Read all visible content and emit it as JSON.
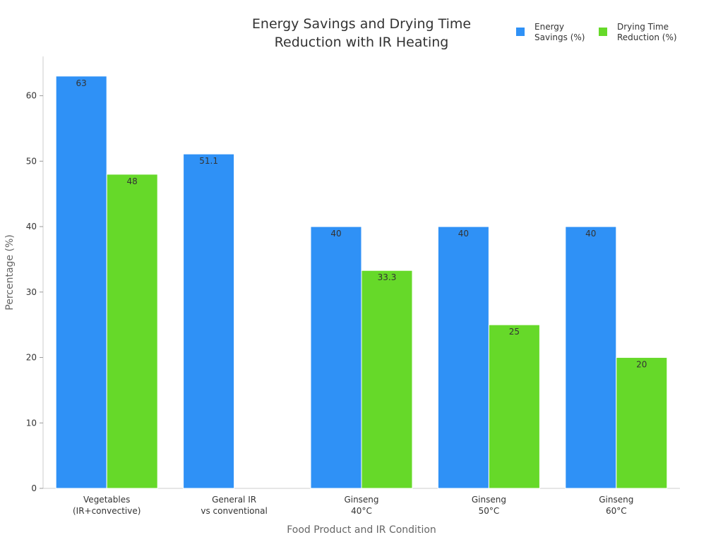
{
  "chart_data": {
    "type": "bar",
    "title": [
      "Energy Savings and Drying Time",
      "Reduction with IR Heating"
    ],
    "xlabel": "Food Product and IR Condition",
    "ylabel": "Percentage (%)",
    "ylim": [
      0,
      66
    ],
    "yticks": [
      0,
      10,
      20,
      30,
      40,
      50,
      60
    ],
    "categories": [
      [
        "Vegetables",
        "(IR+convective)"
      ],
      [
        "General IR",
        "vs conventional"
      ],
      [
        "Ginseng",
        "40°C"
      ],
      [
        "Ginseng",
        "50°C"
      ],
      [
        "Ginseng",
        "60°C"
      ]
    ],
    "series": [
      {
        "name": "Energy Savings (%)",
        "legend_lines": [
          "Energy",
          "Savings (%)"
        ],
        "color": "#2f91f6",
        "values": [
          63,
          51.1,
          40,
          40,
          40
        ],
        "labels": [
          "63",
          "51.1",
          "40",
          "40",
          "40"
        ]
      },
      {
        "name": "Drying Time Reduction (%)",
        "legend_lines": [
          "Drying Time",
          "Reduction (%)"
        ],
        "color": "#66d929",
        "values": [
          48,
          null,
          33.3,
          25,
          20
        ],
        "labels": [
          "48",
          "",
          "33.3",
          "25",
          "20"
        ]
      }
    ],
    "legend_position": "top-right",
    "grid": false
  }
}
